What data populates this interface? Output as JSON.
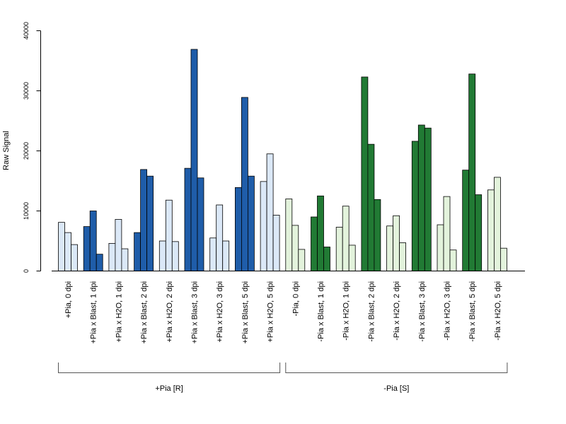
{
  "chart_data": {
    "type": "bar",
    "ylabel": "Raw Signal",
    "ylim": [
      0,
      40000
    ],
    "yticks": [
      0,
      10000,
      20000,
      30000,
      40000
    ],
    "bars_per_category": 3,
    "categories": [
      "+Pia, 0 dpi",
      "+Pia x Blast, 1 dpi",
      "+Pia x H2O, 1 dpi",
      "+Pia x Blast, 2 dpi",
      "+Pia x H2O, 2 dpi",
      "+Pia x Blast, 3 dpi",
      "+Pia x H2O, 3 dpi",
      "+Pia x Blast, 5 dpi",
      "+Pia x H2O, 5 dpi",
      "-Pia, 0 dpi",
      "-Pia x Blast, 1 dpi",
      "-Pia x H2O, 1 dpi",
      "-Pia x Blast, 2 dpi",
      "-Pia x H2O, 2 dpi",
      "-Pia x Blast, 3 dpi",
      "-Pia x H2O, 3 dpi",
      "-Pia x Blast, 5 dpi",
      "-Pia x H2O, 5 dpi"
    ],
    "values": [
      [
        8100,
        6400,
        4400
      ],
      [
        7400,
        10000,
        2800
      ],
      [
        4600,
        8600,
        3700
      ],
      [
        6400,
        16900,
        15800
      ],
      [
        5000,
        11800,
        4900
      ],
      [
        17100,
        36900,
        15500
      ],
      [
        5500,
        11000,
        5000
      ],
      [
        13900,
        28900,
        15800
      ],
      [
        14900,
        19500,
        9300
      ],
      [
        12000,
        7600,
        3600
      ],
      [
        9000,
        12500,
        4000
      ],
      [
        7300,
        10800,
        4300
      ],
      [
        32300,
        21100,
        11900
      ],
      [
        7500,
        9200,
        4700
      ],
      [
        21600,
        24300,
        23800
      ],
      [
        7700,
        12400,
        3500
      ],
      [
        16800,
        32800,
        12700
      ],
      [
        13500,
        15600,
        3800
      ]
    ],
    "bar_colors": [
      "#dbe8f7",
      "#1f5da9",
      "#dbe8f7",
      "#1f5da9",
      "#dbe8f7",
      "#1f5da9",
      "#dbe8f7",
      "#1f5da9",
      "#dbe8f7",
      "#e3f3dc",
      "#217a34",
      "#e3f3dc",
      "#217a34",
      "#e3f3dc",
      "#217a34",
      "#e3f3dc",
      "#217a34",
      "#e3f3dc"
    ],
    "groups": [
      {
        "label": "+Pia [R]",
        "from": 0,
        "to": 8
      },
      {
        "label": "-Pia [S]",
        "from": 9,
        "to": 17
      }
    ]
  }
}
